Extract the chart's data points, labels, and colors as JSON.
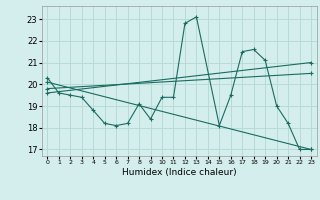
{
  "title": "",
  "xlabel": "Humidex (Indice chaleur)",
  "bg_color": "#d4eeed",
  "grid_color": "#b8dbd8",
  "line_color": "#1a6b60",
  "xlim": [
    -0.5,
    23.5
  ],
  "ylim": [
    16.7,
    23.6
  ],
  "yticks": [
    17,
    18,
    19,
    20,
    21,
    22,
    23
  ],
  "xticks": [
    0,
    1,
    2,
    3,
    4,
    5,
    6,
    7,
    8,
    9,
    10,
    11,
    12,
    13,
    14,
    15,
    16,
    17,
    18,
    19,
    20,
    21,
    22,
    23
  ],
  "series1_x": [
    0,
    1,
    2,
    3,
    4,
    5,
    6,
    7,
    8,
    9,
    10,
    11,
    12,
    13,
    15,
    16,
    17,
    18,
    19,
    20,
    21,
    22,
    23
  ],
  "series1_y": [
    20.3,
    19.6,
    19.5,
    19.4,
    18.8,
    18.2,
    18.1,
    18.2,
    19.1,
    18.4,
    19.4,
    19.4,
    22.8,
    23.1,
    18.1,
    19.5,
    21.5,
    21.6,
    21.1,
    19.0,
    18.2,
    17.0,
    17.0
  ],
  "series2_x": [
    0,
    23
  ],
  "series2_y": [
    20.1,
    17.0
  ],
  "series3_x": [
    0,
    23
  ],
  "series3_y": [
    19.6,
    21.0
  ],
  "series4_x": [
    0,
    23
  ],
  "series4_y": [
    19.8,
    20.5
  ]
}
